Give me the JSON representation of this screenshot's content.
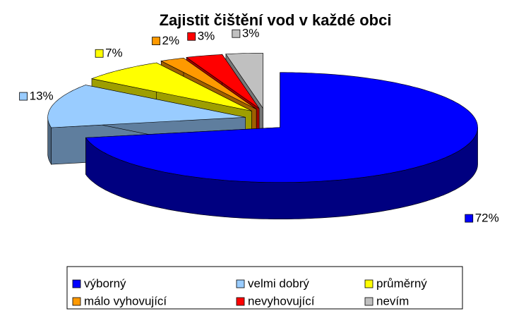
{
  "chart_data": {
    "type": "pie3d",
    "title": "Zajistit čištění vod v každé obci",
    "categories": [
      "výborný",
      "velmi dobrý",
      "průměrný",
      "málo vyhovující",
      "nevyhovující",
      "nevím"
    ],
    "values": [
      72,
      13,
      7,
      2,
      3,
      3
    ],
    "value_labels": [
      "72%",
      "13%",
      "7%",
      "2%",
      "3%",
      "3%"
    ],
    "colors": [
      "#0000ff",
      "#99ccff",
      "#ffff00",
      "#ff9900",
      "#ff0000",
      "#c0c0c0"
    ],
    "legend": "bottom"
  }
}
